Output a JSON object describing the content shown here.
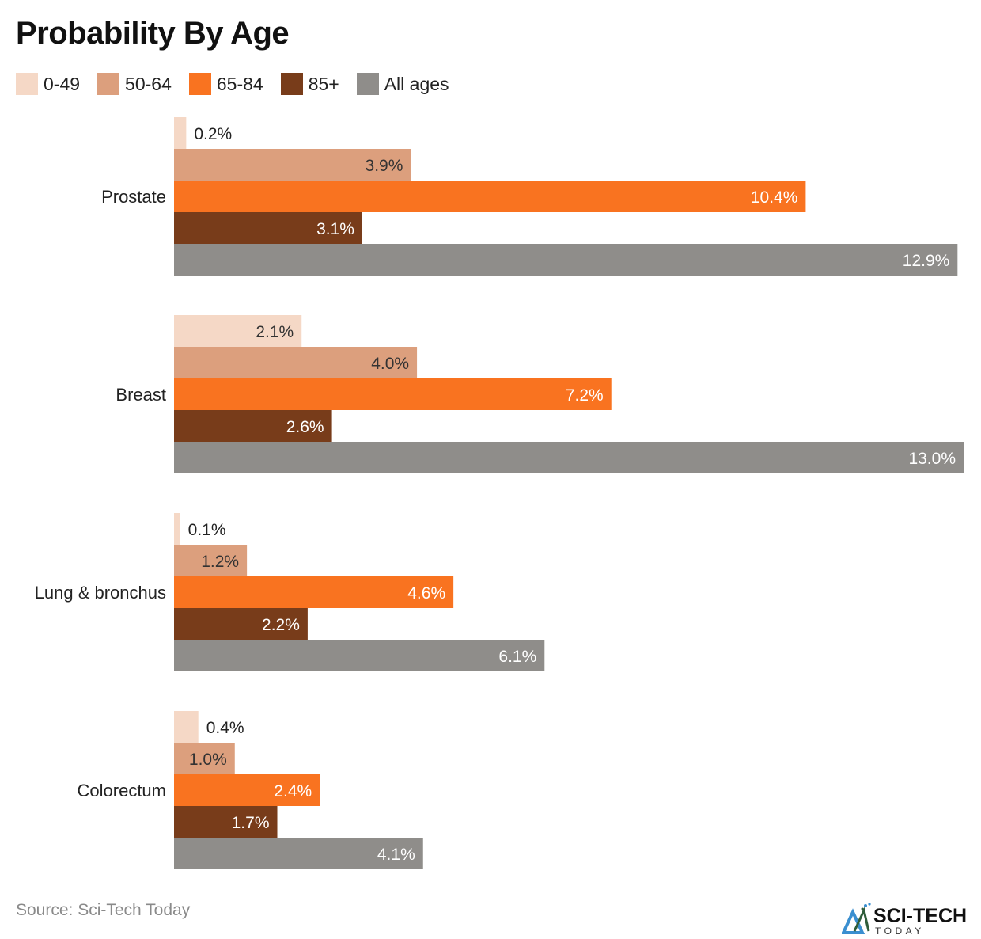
{
  "chart_data": {
    "type": "bar",
    "orientation": "horizontal",
    "title": "Probability By Age",
    "categories": [
      "Prostate",
      "Breast",
      "Lung & bronchus",
      "Colorectum"
    ],
    "series": [
      {
        "name": "0-49",
        "color": "#f5d8c6",
        "values": [
          0.2,
          2.1,
          0.1,
          0.4
        ]
      },
      {
        "name": "50-64",
        "color": "#dc9f7d",
        "values": [
          3.9,
          4.0,
          1.2,
          1.0
        ]
      },
      {
        "name": "65-84",
        "color": "#f97320",
        "values": [
          10.4,
          7.2,
          4.6,
          2.4
        ]
      },
      {
        "name": "85+",
        "color": "#783c1a",
        "values": [
          3.1,
          2.6,
          2.2,
          1.7
        ]
      },
      {
        "name": "All ages",
        "color": "#8f8d8a",
        "values": [
          12.9,
          13.0,
          6.1,
          4.1
        ]
      }
    ],
    "value_suffix": "%",
    "xlim": [
      0,
      13.0
    ],
    "grid": false,
    "legend_position": "top-left"
  },
  "source": "Source: Sci-Tech Today",
  "logo": {
    "text": "SCI-TECH",
    "subtext": "TODAY"
  }
}
